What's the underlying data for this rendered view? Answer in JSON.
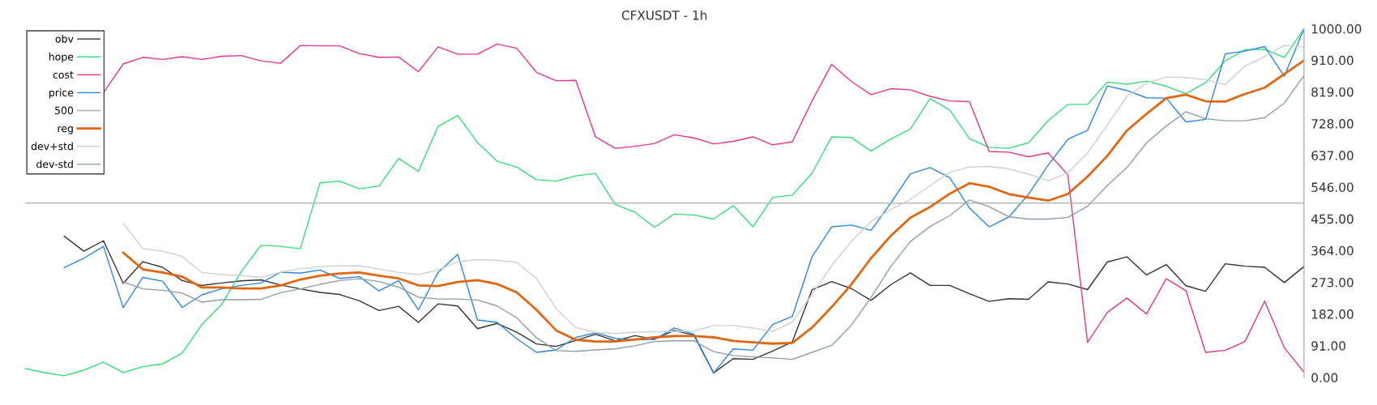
{
  "chart_data": {
    "type": "line",
    "title": "CFXUSDT - 1h",
    "categories": [
      null,
      null,
      null,
      null,
      null,
      null,
      null,
      null,
      null,
      null,
      null,
      null,
      null,
      null,
      null,
      null,
      null,
      null,
      null,
      null,
      null,
      null,
      null,
      null,
      null,
      null,
      null,
      null,
      null,
      null,
      null,
      null,
      null,
      null,
      null,
      null,
      null,
      null,
      null,
      null,
      null,
      null,
      null,
      null,
      null,
      null,
      null,
      null,
      null,
      null,
      null,
      null,
      null,
      null,
      null,
      null,
      null,
      null,
      null,
      null,
      null,
      null,
      null,
      null,
      null,
      null
    ],
    "ylim": [
      0,
      1000
    ],
    "yticks": [
      {
        "value": 0,
        "label": "0.00"
      },
      {
        "value": 91,
        "label": "91.00"
      },
      {
        "value": 182,
        "label": "182.00"
      },
      {
        "value": 273,
        "label": "273.00"
      },
      {
        "value": 364,
        "label": "364.00"
      },
      {
        "value": 455,
        "label": "455.00"
      },
      {
        "value": 546,
        "label": "546.00"
      },
      {
        "value": 637,
        "label": "637.00"
      },
      {
        "value": 728,
        "label": "728.00"
      },
      {
        "value": 819,
        "label": "819.00"
      },
      {
        "value": 910,
        "label": "910.00"
      },
      {
        "value": 1000,
        "label": "1000.00"
      }
    ],
    "tick_labels": "y",
    "legend": "top left",
    "marker": "none",
    "line_style": "solid",
    "series": [
      {
        "name": "obv",
        "color": "#333333",
        "values": [
          null,
          null,
          405,
          362,
          392,
          270,
          332,
          316,
          278,
          264,
          271,
          277,
          280,
          265,
          254,
          244,
          238,
          220,
          192,
          204,
          158,
          211,
          205,
          140,
          155,
          130,
          96,
          89,
          106,
          124,
          105,
          120,
          110,
          135,
          121,
          13,
          54,
          52,
          76,
          102,
          251,
          275,
          255,
          221,
          266,
          300,
          264,
          264,
          240,
          218,
          226,
          224,
          274,
          268,
          252,
          331,
          346,
          294,
          324,
          263,
          247,
          326,
          319,
          316,
          272,
          318
        ]
      },
      {
        "name": "hope",
        "color": "#33dd77",
        "values": [
          26,
          14,
          5,
          21,
          44,
          14,
          31,
          39,
          70,
          152,
          209,
          304,
          379,
          376,
          369,
          558,
          563,
          541,
          549,
          628,
          591,
          720,
          751,
          674,
          620,
          603,
          567,
          563,
          578,
          585,
          496,
          474,
          431,
          469,
          466,
          454,
          493,
          432,
          516,
          523,
          586,
          690,
          688,
          649,
          684,
          712,
          800,
          767,
          685,
          660,
          657,
          673,
          737,
          783,
          783,
          847,
          841,
          850,
          835,
          814,
          845,
          908,
          940,
          941,
          918,
          1000
        ]
      },
      {
        "name": "cost",
        "color": "#e6348c",
        "values": [
          null,
          null,
          null,
          null,
          817,
          899,
          918,
          912,
          920,
          912,
          921,
          923,
          908,
          901,
          952,
          951,
          951,
          929,
          918,
          919,
          877,
          948,
          927,
          927,
          956,
          944,
          875,
          851,
          852,
          690,
          657,
          663,
          671,
          696,
          687,
          670,
          677,
          690,
          667,
          676,
          793,
          898,
          849,
          811,
          828,
          825,
          806,
          793,
          791,
          648,
          646,
          633,
          644,
          581,
          101,
          186,
          228,
          182,
          283,
          249,
          72,
          78,
          103,
          219,
          85,
          15
        ]
      },
      {
        "name": "price",
        "color": "#2b87e3",
        "values": [
          null,
          null,
          315,
          342,
          376,
          200,
          287,
          276,
          201,
          237,
          254,
          264,
          271,
          302,
          299,
          308,
          284,
          289,
          248,
          278,
          194,
          301,
          353,
          165,
          158,
          111,
          72,
          79,
          115,
          128,
          112,
          108,
          109,
          142,
          124,
          13,
          82,
          78,
          152,
          175,
          346,
          432,
          437,
          422,
          500,
          584,
          602,
          573,
          486,
          432,
          460,
          525,
          609,
          683,
          709,
          836,
          823,
          802,
          801,
          733,
          740,
          928,
          936,
          949,
          864,
          1000
        ]
      },
      {
        "name": "500",
        "color": "#b8b8b8",
        "values": [
          500,
          500,
          500,
          500,
          500,
          500,
          500,
          500,
          500,
          500,
          500,
          500,
          500,
          500,
          500,
          500,
          500,
          500,
          500,
          500,
          500,
          500,
          500,
          500,
          500,
          500,
          500,
          500,
          500,
          500,
          500,
          500,
          500,
          500,
          500,
          500,
          500,
          500,
          500,
          500,
          500,
          500,
          500,
          500,
          500,
          500,
          500,
          500,
          500,
          500,
          500,
          500,
          500,
          500,
          500,
          500,
          500,
          500,
          500,
          500,
          500,
          500,
          500,
          500,
          500,
          500
        ]
      },
      {
        "name": "reg",
        "color": "#e0660f",
        "values": [
          null,
          null,
          null,
          null,
          null,
          358,
          310,
          301,
          289,
          258,
          258,
          255,
          255,
          264,
          281,
          292,
          298,
          301,
          292,
          284,
          264,
          262,
          274,
          279,
          268,
          244,
          194,
          135,
          108,
          103,
          103,
          109,
          115,
          119,
          119,
          115,
          105,
          101,
          97,
          99,
          143,
          202,
          267,
          342,
          406,
          458,
          489,
          527,
          557,
          547,
          526,
          516,
          507,
          526,
          576,
          635,
          708,
          756,
          801,
          811,
          792,
          791,
          813,
          831,
          870,
          909
        ]
      },
      {
        "name": "dev+std",
        "color": "#c9d1d6",
        "values": [
          null,
          null,
          null,
          null,
          null,
          442,
          370,
          362,
          347,
          301,
          295,
          292,
          287,
          302,
          312,
          318,
          320,
          320,
          311,
          301,
          295,
          308,
          332,
          338,
          336,
          330,
          284,
          197,
          143,
          129,
          126,
          130,
          131,
          132,
          133,
          149,
          149,
          142,
          132,
          159,
          238,
          321,
          390,
          447,
          481,
          511,
          550,
          588,
          603,
          605,
          598,
          583,
          564,
          587,
          644,
          724,
          806,
          844,
          862,
          860,
          854,
          840,
          893,
          920,
          952,
          948
        ]
      },
      {
        "name": "dev-std",
        "color": "#8e9ea8",
        "values": [
          null,
          null,
          null,
          null,
          null,
          274,
          254,
          250,
          242,
          216,
          223,
          223,
          224,
          243,
          254,
          267,
          278,
          283,
          275,
          259,
          230,
          225,
          225,
          222,
          205,
          171,
          114,
          77,
          75,
          79,
          82,
          91,
          103,
          105,
          105,
          74,
          63,
          59,
          56,
          52,
          72,
          92,
          150,
          229,
          318,
          390,
          433,
          464,
          509,
          490,
          461,
          454,
          454,
          459,
          491,
          550,
          602,
          673,
          721,
          762,
          742,
          736,
          736,
          745,
          787,
          866
        ]
      }
    ]
  }
}
